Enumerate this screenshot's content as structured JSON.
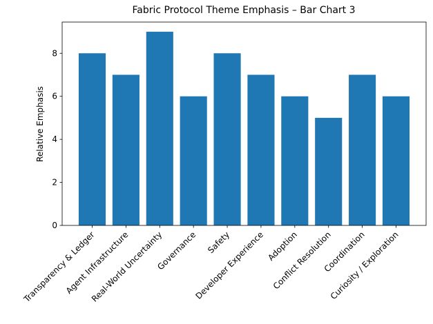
{
  "chart_data": {
    "type": "bar",
    "title": "Fabric Protocol Theme Emphasis – Bar Chart 3",
    "y_label": "Relative Emphasis",
    "categories": [
      "Transparency & Ledger",
      "Agent Infrastructure",
      "Real-World Uncertainty",
      "Governance",
      "Safety",
      "Developer Experience",
      "Adoption",
      "Conflict Resolution",
      "Coordination",
      "Curiosity / Exploration"
    ],
    "values": [
      8,
      7,
      9,
      6,
      8,
      7,
      6,
      5,
      7,
      6
    ],
    "color": "#1f77b4",
    "ylim": [
      0,
      9.45
    ],
    "yticks": [
      0,
      2,
      4,
      6,
      8
    ],
    "grid": false
  }
}
